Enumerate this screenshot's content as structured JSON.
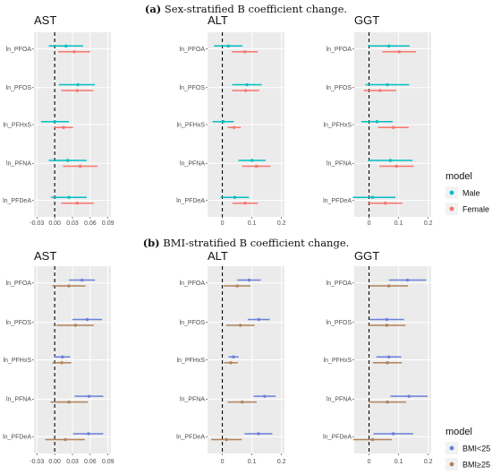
{
  "sections": [
    {
      "title_bold": "(a)",
      "title_rest": " Sex-stratified Β coefficient change.",
      "legend": {
        "title": "model",
        "entries": [
          {
            "label": "Male",
            "color": "#00BFC4"
          },
          {
            "label": "Female",
            "color": "#F8766D"
          }
        ]
      }
    },
    {
      "title_bold": "(b)",
      "title_rest": " BMI-stratified Β coefficient change.",
      "legend": {
        "title": "model",
        "entries": [
          {
            "label": "BMI<25",
            "color": "#6A7FDB"
          },
          {
            "label": "BMI≥25",
            "color": "#B0835A"
          }
        ]
      }
    }
  ],
  "chart_data": [
    {
      "type": "forest",
      "section": 0,
      "title": "AST",
      "categories": [
        "ln_PFOA",
        "ln_PFOS",
        "ln_PFHxS",
        "ln_PFNA",
        "ln_PFDeA"
      ],
      "xticks": [
        "-0.03",
        "0.00",
        "0.03",
        "0.06",
        "0.09"
      ],
      "xlim": [
        -0.035,
        0.095
      ],
      "reference_line": 0,
      "series": [
        {
          "name": "Male",
          "color": "#00BFC4",
          "estimate": [
            0.019,
            0.039,
            0.0,
            0.022,
            0.024
          ],
          "lower": [
            -0.01,
            0.007,
            -0.023,
            -0.01,
            -0.006
          ],
          "upper": [
            0.048,
            0.068,
            0.024,
            0.054,
            0.054
          ]
        },
        {
          "name": "Female",
          "color": "#F8766D",
          "estimate": [
            0.033,
            0.038,
            0.015,
            0.043,
            0.038
          ],
          "lower": [
            0.006,
            0.011,
            -0.001,
            0.014,
            0.011
          ],
          "upper": [
            0.06,
            0.065,
            0.031,
            0.072,
            0.066
          ]
        }
      ]
    },
    {
      "type": "forest",
      "section": 0,
      "title": "ALT",
      "categories": [
        "ln_PFOA",
        "ln_PFOS",
        "ln_PFHxS",
        "ln_PFNA",
        "ln_PFDeA"
      ],
      "xticks": [
        "0",
        "0.1",
        "0.2"
      ],
      "xlim": [
        -0.05,
        0.21
      ],
      "reference_line": 0,
      "series": [
        {
          "name": "Male",
          "color": "#00BFC4",
          "estimate": [
            0.02,
            0.083,
            0.003,
            0.1,
            0.042
          ],
          "lower": [
            -0.028,
            0.033,
            -0.033,
            0.054,
            -0.006
          ],
          "upper": [
            0.068,
            0.133,
            0.039,
            0.146,
            0.09
          ]
        },
        {
          "name": "Female",
          "color": "#F8766D",
          "estimate": [
            0.076,
            0.079,
            0.04,
            0.115,
            0.077
          ],
          "lower": [
            0.032,
            0.033,
            0.018,
            0.067,
            0.034
          ],
          "upper": [
            0.12,
            0.125,
            0.062,
            0.163,
            0.12
          ]
        }
      ]
    },
    {
      "type": "forest",
      "section": 0,
      "title": "GGT",
      "categories": [
        "ln_PFOA",
        "ln_PFOS",
        "ln_PFHxS",
        "ln_PFNA",
        "ln_PFDeA"
      ],
      "xticks": [
        "0",
        "0.1",
        "0.2"
      ],
      "xlim": [
        -0.05,
        0.21
      ],
      "reference_line": 0,
      "series": [
        {
          "name": "Male",
          "color": "#00BFC4",
          "estimate": [
            0.067,
            0.062,
            0.027,
            0.072,
            0.012
          ],
          "lower": [
            -0.003,
            -0.012,
            -0.026,
            -0.003,
            -0.055
          ],
          "upper": [
            0.137,
            0.136,
            0.08,
            0.147,
            0.089
          ]
        },
        {
          "name": "Female",
          "color": "#F8766D",
          "estimate": [
            0.102,
            0.037,
            0.082,
            0.093,
            0.055
          ],
          "lower": [
            0.045,
            -0.018,
            0.03,
            0.035,
            -0.003
          ],
          "upper": [
            0.159,
            0.092,
            0.134,
            0.151,
            0.113
          ]
        }
      ]
    },
    {
      "type": "forest",
      "section": 1,
      "title": "AST",
      "categories": [
        "ln_PFOA",
        "ln_PFOS",
        "ln_PFHxS",
        "ln_PFNA",
        "ln_PFDeA"
      ],
      "xticks": [
        "-0.03",
        "0.00",
        "0.03",
        "0.06",
        "0.09"
      ],
      "xlim": [
        -0.035,
        0.095
      ],
      "reference_line": 0,
      "series": [
        {
          "name": "BMI<25",
          "color": "#6A7FDB",
          "estimate": [
            0.046,
            0.055,
            0.013,
            0.058,
            0.057
          ],
          "lower": [
            0.024,
            0.03,
            -0.001,
            0.034,
            0.031
          ],
          "upper": [
            0.068,
            0.08,
            0.026,
            0.082,
            0.082
          ]
        },
        {
          "name": "BMI≥25",
          "color": "#B0835A",
          "estimate": [
            0.024,
            0.035,
            0.012,
            0.024,
            0.018
          ],
          "lower": [
            -0.004,
            0.003,
            -0.004,
            -0.007,
            -0.016
          ],
          "upper": [
            0.052,
            0.066,
            0.028,
            0.056,
            0.051
          ]
        }
      ]
    },
    {
      "type": "forest",
      "section": 1,
      "title": "ALT",
      "categories": [
        "ln_PFOA",
        "ln_PFOS",
        "ln_PFHxS",
        "ln_PFNA",
        "ln_PFDeA"
      ],
      "xticks": [
        "0",
        "0.1",
        "0.2"
      ],
      "xlim": [
        -0.05,
        0.21
      ],
      "reference_line": 0,
      "series": [
        {
          "name": "BMI<25",
          "color": "#6A7FDB",
          "estimate": [
            0.09,
            0.123,
            0.038,
            0.143,
            0.122
          ],
          "lower": [
            0.05,
            0.086,
            0.021,
            0.106,
            0.075
          ],
          "upper": [
            0.13,
            0.16,
            0.055,
            0.18,
            0.169
          ]
        },
        {
          "name": "BMI≥25",
          "color": "#B0835A",
          "estimate": [
            0.05,
            0.061,
            0.029,
            0.067,
            0.014
          ],
          "lower": [
            0.005,
            0.013,
            0.006,
            0.018,
            -0.038
          ],
          "upper": [
            0.095,
            0.109,
            0.052,
            0.116,
            0.066
          ]
        }
      ]
    },
    {
      "type": "forest",
      "section": 1,
      "title": "GGT",
      "categories": [
        "ln_PFOA",
        "ln_PFOS",
        "ln_PFHxS",
        "ln_PFNA",
        "ln_PFDeA"
      ],
      "xticks": [
        "0",
        "0.1",
        "0.2"
      ],
      "xlim": [
        -0.05,
        0.21
      ],
      "reference_line": 0,
      "series": [
        {
          "name": "BMI<25",
          "color": "#6A7FDB",
          "estimate": [
            0.13,
            0.06,
            0.067,
            0.135,
            0.082
          ],
          "lower": [
            0.067,
            0.002,
            0.025,
            0.072,
            0.015
          ],
          "upper": [
            0.193,
            0.118,
            0.109,
            0.198,
            0.149
          ]
        },
        {
          "name": "BMI≥25",
          "color": "#B0835A",
          "estimate": [
            0.067,
            0.06,
            0.062,
            0.062,
            0.012
          ],
          "lower": [
            0.002,
            -0.003,
            0.013,
            -0.001,
            -0.053
          ],
          "upper": [
            0.132,
            0.123,
            0.111,
            0.125,
            0.077
          ]
        }
      ]
    }
  ]
}
